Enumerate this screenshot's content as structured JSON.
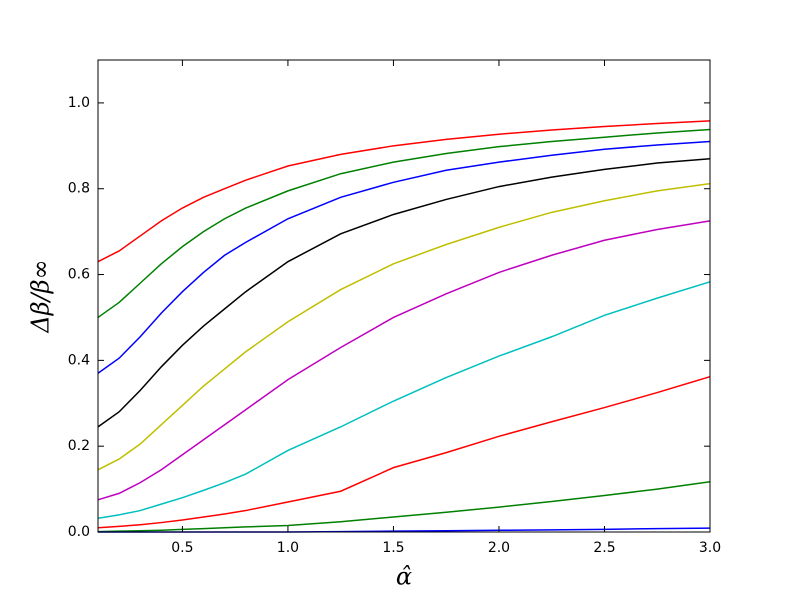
{
  "chart_data": {
    "type": "line",
    "x_label": "α̂",
    "y_label": "Δβ/β∞",
    "x": [
      0.1,
      0.2,
      0.3,
      0.4,
      0.5,
      0.6,
      0.7,
      0.8,
      1.0,
      1.25,
      1.5,
      1.75,
      2.0,
      2.25,
      2.5,
      2.75,
      3.0
    ],
    "xlim": [
      0.1,
      3.0
    ],
    "ylim": [
      0,
      1.1
    ],
    "xticks": [
      {
        "value": 0.5,
        "label": "0.5"
      },
      {
        "value": 1.0,
        "label": "1.0"
      },
      {
        "value": 1.5,
        "label": "1.5"
      },
      {
        "value": 2.0,
        "label": "2.0"
      },
      {
        "value": 2.5,
        "label": "2.5"
      },
      {
        "value": 3.0,
        "label": "3.0"
      }
    ],
    "yticks": [
      {
        "value": 0,
        "label": "0.0"
      },
      {
        "value": 0.2,
        "label": "0.2"
      },
      {
        "value": 0.4,
        "label": "0.4"
      },
      {
        "value": 0.6,
        "label": "0.6"
      },
      {
        "value": 0.8,
        "label": "0.8"
      },
      {
        "value": 1.0,
        "label": "1.0"
      }
    ],
    "grid": false,
    "series": [
      {
        "color": "#ff0000",
        "values": [
          0.63,
          0.655,
          0.69,
          0.725,
          0.755,
          0.78,
          0.8,
          0.82,
          0.853,
          0.88,
          0.9,
          0.915,
          0.927,
          0.937,
          0.945,
          0.952,
          0.958
        ]
      },
      {
        "color": "#008000",
        "values": [
          0.5,
          0.535,
          0.58,
          0.625,
          0.665,
          0.7,
          0.73,
          0.755,
          0.795,
          0.835,
          0.862,
          0.882,
          0.898,
          0.91,
          0.92,
          0.93,
          0.938
        ]
      },
      {
        "color": "#0000ff",
        "values": [
          0.37,
          0.405,
          0.455,
          0.51,
          0.56,
          0.605,
          0.645,
          0.675,
          0.73,
          0.78,
          0.815,
          0.843,
          0.862,
          0.878,
          0.892,
          0.902,
          0.91
        ]
      },
      {
        "color": "#000000",
        "values": [
          0.245,
          0.28,
          0.33,
          0.385,
          0.435,
          0.48,
          0.52,
          0.56,
          0.63,
          0.695,
          0.74,
          0.775,
          0.805,
          0.827,
          0.845,
          0.86,
          0.87
        ]
      },
      {
        "color": "#bfbf00",
        "values": [
          0.145,
          0.17,
          0.205,
          0.25,
          0.295,
          0.34,
          0.38,
          0.42,
          0.49,
          0.565,
          0.625,
          0.67,
          0.71,
          0.745,
          0.772,
          0.795,
          0.812
        ]
      },
      {
        "color": "#bf00bf",
        "values": [
          0.075,
          0.09,
          0.115,
          0.145,
          0.18,
          0.215,
          0.25,
          0.285,
          0.355,
          0.43,
          0.5,
          0.555,
          0.605,
          0.645,
          0.68,
          0.705,
          0.725
        ]
      },
      {
        "color": "#00bfbf",
        "values": [
          0.032,
          0.04,
          0.05,
          0.065,
          0.08,
          0.097,
          0.115,
          0.135,
          0.19,
          0.245,
          0.305,
          0.36,
          0.41,
          0.455,
          0.505,
          0.545,
          0.583
        ]
      },
      {
        "color": "#ff0000",
        "values": [
          0.01,
          0.013,
          0.017,
          0.022,
          0.028,
          0.035,
          0.042,
          0.05,
          0.07,
          0.095,
          0.15,
          0.185,
          0.223,
          0.257,
          0.29,
          0.325,
          0.362
        ]
      },
      {
        "color": "#008000",
        "values": [
          0.001,
          0.002,
          0.003,
          0.004,
          0.006,
          0.008,
          0.01,
          0.012,
          0.015,
          0.024,
          0.035,
          0.046,
          0.058,
          0.071,
          0.085,
          0.1,
          0.117
        ]
      },
      {
        "color": "#0000ff",
        "values": [
          0.0,
          0.0,
          0.0,
          0.0,
          0.0,
          0.0,
          0.0,
          0.0,
          0.0,
          0.001,
          0.002,
          0.003,
          0.004,
          0.005,
          0.006,
          0.008,
          0.009
        ]
      }
    ]
  }
}
